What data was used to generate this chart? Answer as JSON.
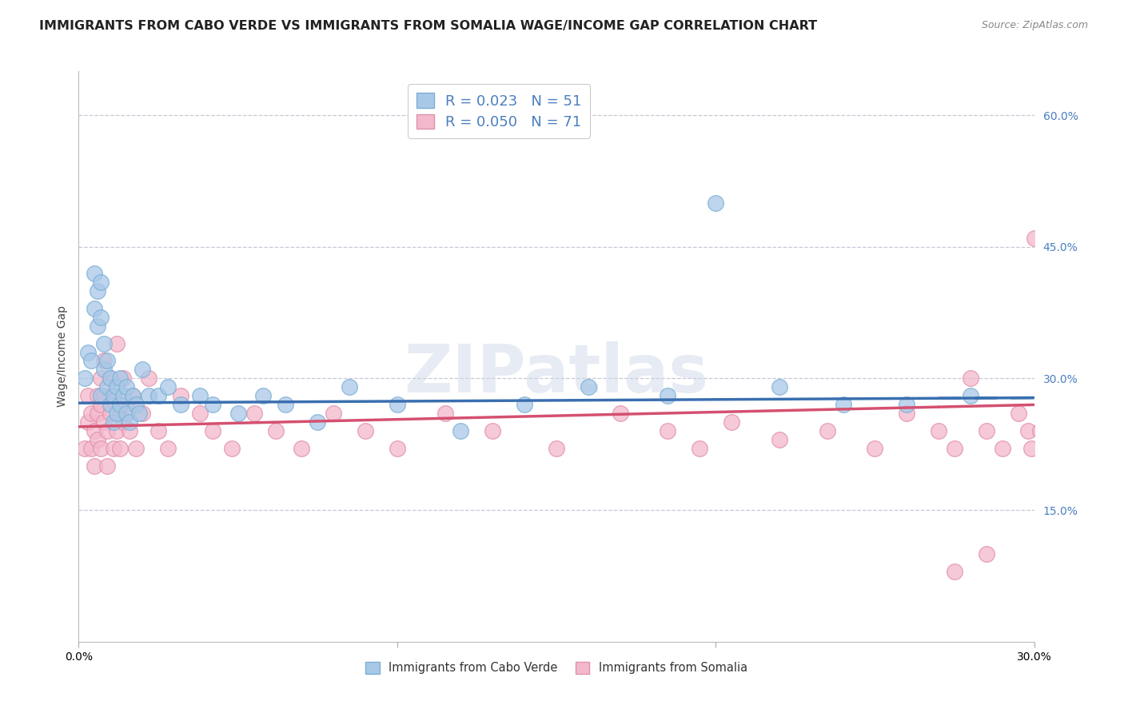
{
  "title": "IMMIGRANTS FROM CABO VERDE VS IMMIGRANTS FROM SOMALIA WAGE/INCOME GAP CORRELATION CHART",
  "source": "Source: ZipAtlas.com",
  "ylabel": "Wage/Income Gap",
  "legend_cabo_r": "0.023",
  "legend_cabo_n": "51",
  "legend_somalia_r": "0.050",
  "legend_somalia_n": "71",
  "cabo_color": "#a8c8e8",
  "cabo_edge_color": "#7bafd4",
  "somalia_color": "#f4b8cc",
  "somalia_edge_color": "#e090aa",
  "cabo_line_color": "#3a6fb0",
  "somalia_line_color": "#d45070",
  "grid_color": "#c8c8d8",
  "ytick_color": "#4a7fc0",
  "background_color": "#ffffff",
  "xlim": [
    0.0,
    0.3
  ],
  "ylim": [
    0.0,
    0.65
  ],
  "yticks": [
    0.15,
    0.3,
    0.45,
    0.6
  ],
  "ytick_labels": [
    "15.0%",
    "30.0%",
    "45.0%",
    "60.0%"
  ],
  "watermark": "ZIPatlas",
  "title_fontsize": 11.5,
  "source_fontsize": 9,
  "axis_label_fontsize": 10,
  "tick_fontsize": 10,
  "legend_fontsize": 13,
  "cabo_x": [
    0.002,
    0.003,
    0.004,
    0.005,
    0.005,
    0.006,
    0.006,
    0.007,
    0.007,
    0.007,
    0.008,
    0.008,
    0.009,
    0.009,
    0.01,
    0.01,
    0.011,
    0.011,
    0.012,
    0.012,
    0.013,
    0.013,
    0.014,
    0.015,
    0.015,
    0.016,
    0.017,
    0.018,
    0.019,
    0.02,
    0.022,
    0.025,
    0.028,
    0.032,
    0.038,
    0.042,
    0.05,
    0.058,
    0.065,
    0.075,
    0.085,
    0.1,
    0.12,
    0.14,
    0.16,
    0.185,
    0.2,
    0.22,
    0.24,
    0.26,
    0.28
  ],
  "cabo_y": [
    0.3,
    0.33,
    0.32,
    0.38,
    0.42,
    0.4,
    0.36,
    0.41,
    0.37,
    0.28,
    0.31,
    0.34,
    0.29,
    0.32,
    0.27,
    0.3,
    0.28,
    0.25,
    0.29,
    0.26,
    0.27,
    0.3,
    0.28,
    0.26,
    0.29,
    0.25,
    0.28,
    0.27,
    0.26,
    0.31,
    0.28,
    0.28,
    0.29,
    0.27,
    0.28,
    0.27,
    0.26,
    0.28,
    0.27,
    0.25,
    0.29,
    0.27,
    0.24,
    0.27,
    0.29,
    0.28,
    0.5,
    0.29,
    0.27,
    0.27,
    0.28
  ],
  "somalia_x": [
    0.002,
    0.003,
    0.003,
    0.004,
    0.004,
    0.005,
    0.005,
    0.006,
    0.006,
    0.006,
    0.007,
    0.007,
    0.007,
    0.008,
    0.008,
    0.008,
    0.009,
    0.009,
    0.01,
    0.01,
    0.011,
    0.011,
    0.012,
    0.012,
    0.013,
    0.013,
    0.014,
    0.014,
    0.015,
    0.016,
    0.017,
    0.018,
    0.02,
    0.022,
    0.025,
    0.028,
    0.032,
    0.038,
    0.042,
    0.048,
    0.055,
    0.062,
    0.07,
    0.08,
    0.09,
    0.1,
    0.115,
    0.13,
    0.15,
    0.17,
    0.185,
    0.195,
    0.205,
    0.22,
    0.235,
    0.25,
    0.26,
    0.27,
    0.275,
    0.28,
    0.285,
    0.29,
    0.295,
    0.298,
    0.299,
    0.3,
    0.302,
    0.305,
    0.31,
    0.275,
    0.285
  ],
  "somalia_y": [
    0.22,
    0.25,
    0.28,
    0.22,
    0.26,
    0.24,
    0.2,
    0.28,
    0.23,
    0.26,
    0.3,
    0.22,
    0.27,
    0.25,
    0.32,
    0.28,
    0.24,
    0.2,
    0.26,
    0.3,
    0.22,
    0.28,
    0.24,
    0.34,
    0.26,
    0.22,
    0.3,
    0.25,
    0.27,
    0.24,
    0.28,
    0.22,
    0.26,
    0.3,
    0.24,
    0.22,
    0.28,
    0.26,
    0.24,
    0.22,
    0.26,
    0.24,
    0.22,
    0.26,
    0.24,
    0.22,
    0.26,
    0.24,
    0.22,
    0.26,
    0.24,
    0.22,
    0.25,
    0.23,
    0.24,
    0.22,
    0.26,
    0.24,
    0.22,
    0.3,
    0.24,
    0.22,
    0.26,
    0.24,
    0.22,
    0.46,
    0.24,
    0.22,
    0.26,
    0.08,
    0.1
  ]
}
